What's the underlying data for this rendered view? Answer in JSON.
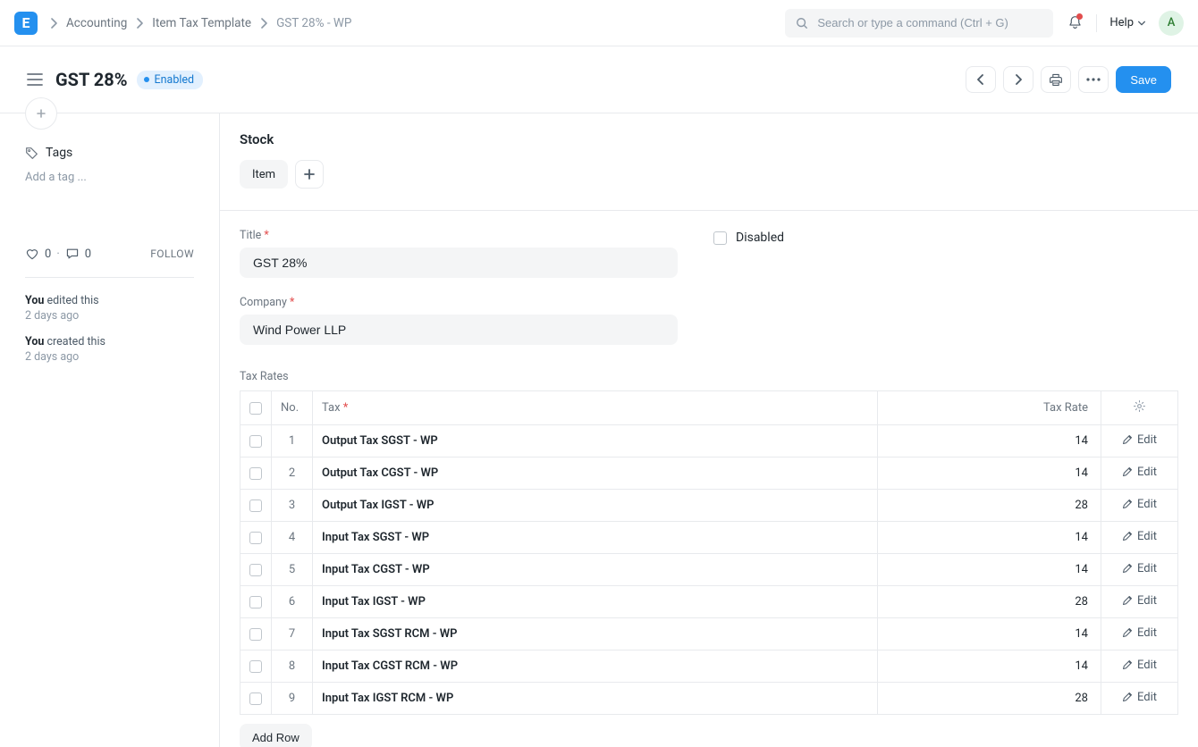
{
  "navbar": {
    "logo_letter": "E",
    "breadcrumb": [
      "Accounting",
      "Item Tax Template",
      "GST 28% - WP"
    ],
    "search_placeholder": "Search or type a command (Ctrl + G)",
    "help_label": "Help",
    "avatar_letter": "A"
  },
  "page": {
    "title": "GST 28%",
    "status_pill": "Enabled",
    "save_label": "Save"
  },
  "sidebar": {
    "tags_label": "Tags",
    "tags_placeholder": "Add a tag ...",
    "likes": "0",
    "comments": "0",
    "follow_label": "FOLLOW",
    "activity": [
      {
        "who": "You",
        "what": "edited this",
        "when": "2 days ago"
      },
      {
        "who": "You",
        "what": "created this",
        "when": "2 days ago"
      }
    ]
  },
  "form": {
    "stock_title": "Stock",
    "item_chip": "Item",
    "title_label": "Title",
    "title_value": "GST 28%",
    "company_label": "Company",
    "company_value": "Wind Power LLP",
    "disabled_label": "Disabled",
    "tax_rates_label": "Tax Rates",
    "add_row_label": "Add Row",
    "columns": {
      "no": "No.",
      "tax": "Tax",
      "rate": "Tax Rate",
      "edit": "Edit"
    },
    "rows": [
      {
        "no": "1",
        "tax": "Output Tax SGST - WP",
        "rate": "14"
      },
      {
        "no": "2",
        "tax": "Output Tax CGST - WP",
        "rate": "14"
      },
      {
        "no": "3",
        "tax": "Output Tax IGST - WP",
        "rate": "28"
      },
      {
        "no": "4",
        "tax": "Input Tax SGST - WP",
        "rate": "14"
      },
      {
        "no": "5",
        "tax": "Input Tax CGST - WP",
        "rate": "14"
      },
      {
        "no": "6",
        "tax": "Input Tax IGST - WP",
        "rate": "28"
      },
      {
        "no": "7",
        "tax": "Input Tax SGST RCM - WP",
        "rate": "14"
      },
      {
        "no": "8",
        "tax": "Input Tax CGST RCM - WP",
        "rate": "14"
      },
      {
        "no": "9",
        "tax": "Input Tax IGST RCM - WP",
        "rate": "28"
      }
    ]
  },
  "colors": {
    "primary": "#2490ef",
    "border": "#e8eaed",
    "muted": "#8d99a6",
    "text": "#1f272e",
    "pill_bg": "#e2f0fe",
    "danger": "#e24c4c",
    "avatar_bg": "#dff3e5"
  }
}
